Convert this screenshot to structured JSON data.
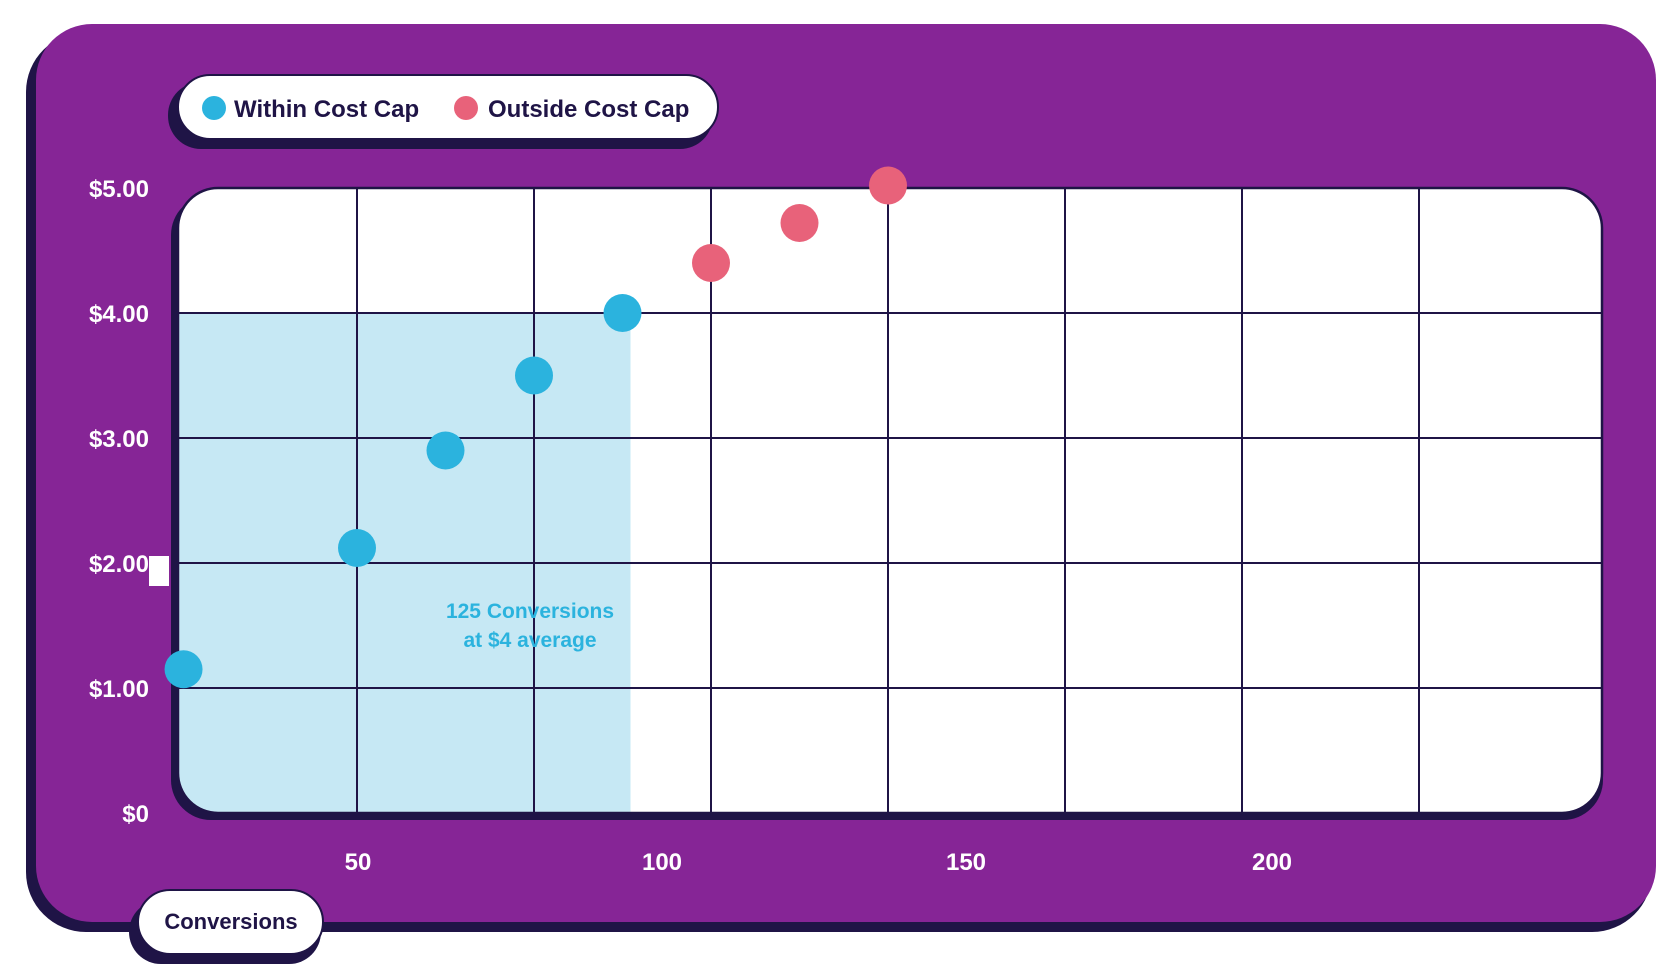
{
  "chart_data": {
    "type": "scatter",
    "title": "",
    "xlabel": "Conversions",
    "ylabel": "",
    "xlim": [
      0,
      250
    ],
    "ylim": [
      0,
      5
    ],
    "x_ticks": [
      50,
      100,
      150,
      200
    ],
    "x_tick_labels": [
      "50",
      "100",
      "150",
      "200"
    ],
    "y_ticks": [
      0,
      1,
      2,
      3,
      4,
      5
    ],
    "y_tick_labels": [
      "$0",
      "$1.00",
      "$2.00",
      "$3.00",
      "$4.00",
      "$5.00"
    ],
    "grid": true,
    "legend_position": "top-left",
    "series": [
      {
        "name": "Within Cost Cap",
        "color": "#2bb3de",
        "points": [
          {
            "x": 1,
            "y": 1.15
          },
          {
            "x": 50,
            "y": 2.12
          },
          {
            "x": 75,
            "y": 2.9
          },
          {
            "x": 100,
            "y": 3.5
          },
          {
            "x": 125,
            "y": 4.0
          }
        ]
      },
      {
        "name": "Outside Cost Cap",
        "color": "#e8627a",
        "points": [
          {
            "x": 150,
            "y": 4.4
          },
          {
            "x": 175,
            "y": 4.72
          },
          {
            "x": 200,
            "y": 5.02
          }
        ]
      }
    ],
    "highlight_region": {
      "x_from": 0,
      "x_to": 125,
      "y_from": 0,
      "y_to": 4.0,
      "color": "#c6e8f4"
    },
    "annotation": {
      "line1": "125 Conversions",
      "line2": "at $4 average",
      "color": "#2bb3de"
    }
  },
  "colors": {
    "frame": "#862596",
    "shadow": "#1f1446",
    "grid": "#1f1446",
    "tick_text": "#ffffff",
    "legend_text": "#1f1446"
  }
}
